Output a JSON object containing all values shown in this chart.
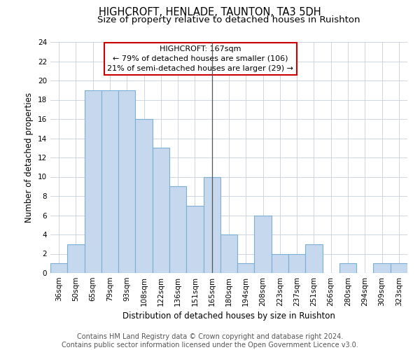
{
  "title": "HIGHCROFT, HENLADE, TAUNTON, TA3 5DH",
  "subtitle": "Size of property relative to detached houses in Ruishton",
  "xlabel": "Distribution of detached houses by size in Ruishton",
  "ylabel": "Number of detached properties",
  "categories": [
    "36sqm",
    "50sqm",
    "65sqm",
    "79sqm",
    "93sqm",
    "108sqm",
    "122sqm",
    "136sqm",
    "151sqm",
    "165sqm",
    "180sqm",
    "194sqm",
    "208sqm",
    "223sqm",
    "237sqm",
    "251sqm",
    "266sqm",
    "280sqm",
    "294sqm",
    "309sqm",
    "323sqm"
  ],
  "values": [
    1,
    3,
    19,
    19,
    19,
    16,
    13,
    9,
    7,
    10,
    4,
    1,
    6,
    2,
    2,
    3,
    0,
    1,
    0,
    1,
    1
  ],
  "bar_color": "#c5d8ed",
  "bar_edge_color": "#7bafd4",
  "highlight_line_index": 9,
  "ylim": [
    0,
    24
  ],
  "yticks": [
    0,
    2,
    4,
    6,
    8,
    10,
    12,
    14,
    16,
    18,
    20,
    22,
    24
  ],
  "annotation_line1": "HIGHCROFT: 167sqm",
  "annotation_line2": "← 79% of detached houses are smaller (106)",
  "annotation_line3": "21% of semi-detached houses are larger (29) →",
  "annotation_box_color": "#ffffff",
  "annotation_box_edge": "#cc0000",
  "footer_text": "Contains HM Land Registry data © Crown copyright and database right 2024.\nContains public sector information licensed under the Open Government Licence v3.0.",
  "background_color": "#ffffff",
  "grid_color": "#c8d0dc",
  "title_fontsize": 10.5,
  "subtitle_fontsize": 9.5,
  "axis_label_fontsize": 8.5,
  "tick_fontsize": 7.5,
  "annotation_fontsize": 8,
  "footer_fontsize": 7
}
